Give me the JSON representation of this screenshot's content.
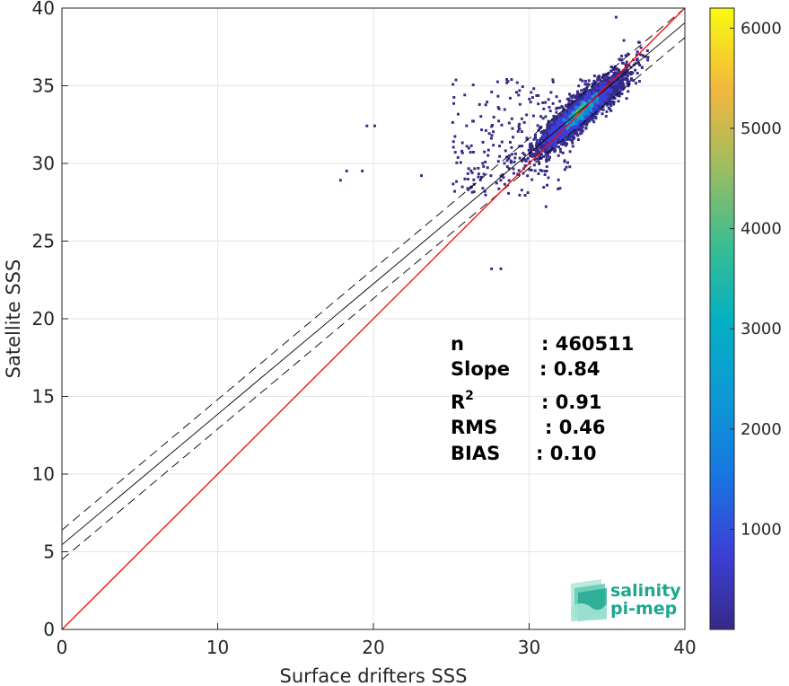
{
  "chart_data": {
    "type": "heatmap",
    "xlabel": "Surface drifters SSS",
    "ylabel": "Satellite SSS",
    "xlim": [
      0,
      40
    ],
    "ylim": [
      0,
      40
    ],
    "xticks": [
      0,
      10,
      20,
      30,
      40
    ],
    "yticks": [
      0,
      5,
      10,
      15,
      20,
      25,
      30,
      35,
      40
    ],
    "grid": true,
    "colorbar": {
      "range": [
        0,
        6200
      ],
      "ticks": [
        1000,
        2000,
        3000,
        4000,
        5000,
        6000
      ],
      "colormap": "parula"
    },
    "lines": {
      "identity": {
        "slope": 1,
        "intercept": 0,
        "color": "#ff0000"
      },
      "regression": {
        "slope": 0.84,
        "intercept": 5.45,
        "color": "#000000"
      },
      "regression_band_upper": {
        "slope": 0.84,
        "intercept": 6.4,
        "color": "#000000",
        "style": "dashed"
      },
      "regression_band_lower": {
        "slope": 0.84,
        "intercept": 4.5,
        "color": "#000000",
        "style": "dashed"
      }
    },
    "density_core": {
      "x": 33.0,
      "y": 33.0,
      "peak_count": 6200
    }
  },
  "stats": {
    "n_label": "n",
    "n_value": ": 460511",
    "slope_label": "Slope",
    "slope_value": ": 0.84",
    "r2_label": "R",
    "r2_sup": "2",
    "r2_value": ": 0.91",
    "rms_label": "RMS",
    "rms_value": ": 0.46",
    "bias_label": "BIAS",
    "bias_value": ": 0.10"
  },
  "logo": {
    "line1": "salinity",
    "line2": "pi-mep",
    "color": "#1fa68f"
  }
}
